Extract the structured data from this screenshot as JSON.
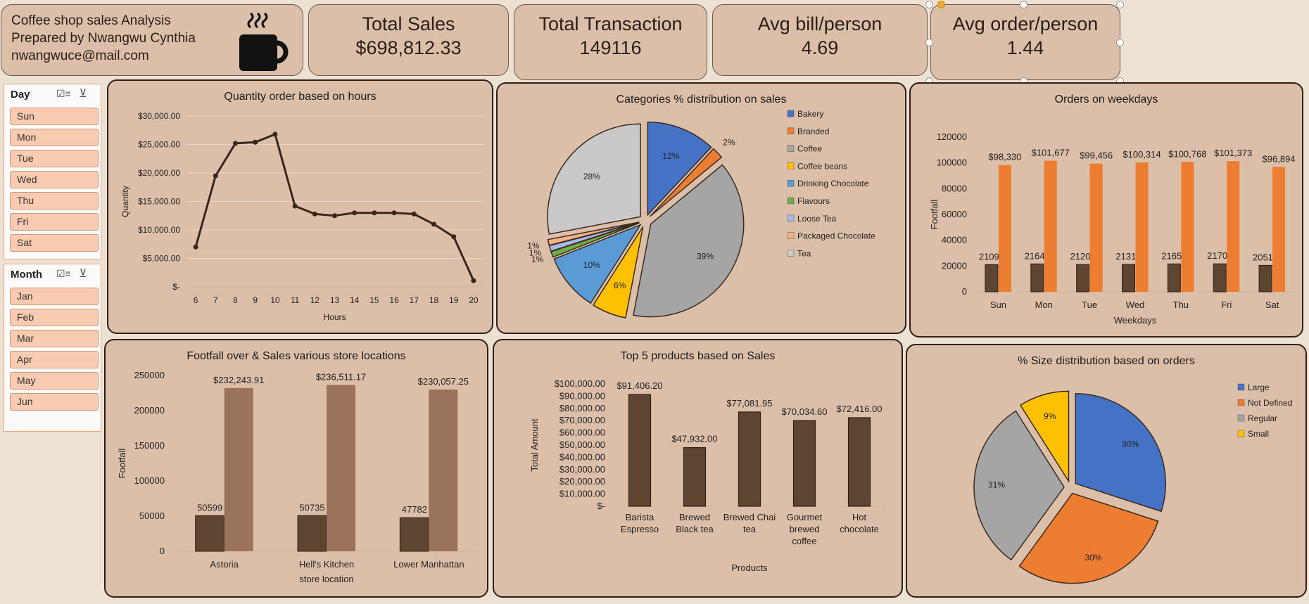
{
  "header": {
    "title_lines": [
      "Coffee shop sales Analysis",
      "Prepared by Nwangwu Cynthia",
      "nwangwuce@mail.com"
    ],
    "icon": "coffee-cup-icon",
    "kpis": [
      {
        "label": "Total Sales",
        "value": "$698,812.33"
      },
      {
        "label": "Total  Transaction",
        "value": "149116"
      },
      {
        "label": "Avg bill/person",
        "value": "4.69"
      },
      {
        "label": "Avg order/person",
        "value": "1.44"
      }
    ]
  },
  "slicers": {
    "day": {
      "title": "Day",
      "items": [
        "Sun",
        "Mon",
        "Tue",
        "Wed",
        "Thu",
        "Fri",
        "Sat"
      ]
    },
    "month": {
      "title": "Month",
      "items": [
        "Jan",
        "Feb",
        "Mar",
        "Apr",
        "May",
        "Jun"
      ]
    }
  },
  "colors": {
    "card_bg": "#dcbfa8",
    "page_bg": "#ece1d3",
    "dark_brown": "#5e4532",
    "light_brown": "#9a735a",
    "orange": "#ed7d31",
    "slicer_button": "#f9cbb0"
  },
  "chart_data": [
    {
      "id": "hours",
      "type": "line",
      "title": "Quantity order based on hours",
      "xlabel": "Hours",
      "ylabel": "Quantity",
      "x": [
        6,
        7,
        8,
        9,
        10,
        11,
        12,
        13,
        14,
        15,
        16,
        17,
        18,
        19,
        20
      ],
      "values": [
        7000,
        19500,
        25200,
        25400,
        26800,
        14200,
        12800,
        12500,
        13000,
        13000,
        13000,
        12800,
        11000,
        8800,
        1100
      ],
      "yticks": [
        "$-",
        "$5,000.00",
        "$10,000.00",
        "$15,000.00",
        "$20,000.00",
        "$25,000.00",
        "$30,000.00"
      ],
      "ylim": [
        0,
        30000
      ],
      "grid": true,
      "color": "#3b261a"
    },
    {
      "id": "categories",
      "type": "pie",
      "title": "Categories % distribution on sales",
      "categories": [
        "Bakery",
        "Branded",
        "Coffee",
        "Coffee beans",
        "Drinking Chocolate",
        "Flavours",
        "Loose Tea",
        "Packaged Chocolate",
        "Tea"
      ],
      "values": [
        12,
        2,
        39,
        6,
        10,
        1,
        1,
        1,
        28
      ],
      "labels": [
        "12%",
        "2%",
        "39%",
        "6%",
        "10%",
        "1%",
        "1%",
        "1%",
        "28%"
      ],
      "colors": [
        "#4472c4",
        "#ed7d31",
        "#a5a5a5",
        "#ffc000",
        "#5b9bd5",
        "#70ad47",
        "#a9b6e6",
        "#f4b183",
        "#c9c9c9"
      ],
      "legend": "right"
    },
    {
      "id": "weekdays",
      "type": "bar",
      "title": "Orders on weekdays",
      "xlabel": "Weekdays",
      "ylabel": "Footfall",
      "categories": [
        "Sun",
        "Mon",
        "Tue",
        "Wed",
        "Thu",
        "Fri",
        "Sat"
      ],
      "series": [
        {
          "values": [
            21096,
            21643,
            21202,
            21310,
            21654,
            21701,
            20510
          ],
          "labels": [
            "21096",
            "21643",
            "21202",
            "21310",
            "21654",
            "21701",
            "20510"
          ],
          "color": "#5e4532"
        },
        {
          "values": [
            98330,
            101677,
            99456,
            100314,
            100768,
            101373,
            96894
          ],
          "labels": [
            "$98,330",
            "$101,677",
            "$99,456",
            "$100,314",
            "$100,768",
            "$101,373",
            "$96,894"
          ],
          "color": "#ed7d31"
        }
      ],
      "yticks": [
        "0",
        "20000",
        "40000",
        "60000",
        "80000",
        "100000",
        "120000"
      ],
      "ylim": [
        0,
        120000
      ],
      "grid": false
    },
    {
      "id": "locations",
      "type": "bar",
      "title": "Footfall over & Sales various store locations",
      "xlabel": "store location",
      "ylabel": "Footfall",
      "categories": [
        "Astoria",
        "Hell's Kitchen",
        "Lower Manhattan"
      ],
      "series": [
        {
          "values": [
            50599,
            50735,
            47782
          ],
          "labels": [
            "50599",
            "50735",
            "47782"
          ],
          "color": "#5e4532"
        },
        {
          "values": [
            232243.91,
            236511.17,
            230057.25
          ],
          "labels": [
            "$232,243.91",
            "$236,511.17",
            "$230,057.25"
          ],
          "color": "#9a735a"
        }
      ],
      "yticks": [
        "0",
        "50000",
        "100000",
        "150000",
        "200000",
        "250000"
      ],
      "ylim": [
        0,
        250000
      ],
      "grid": false
    },
    {
      "id": "products",
      "type": "bar",
      "title": "Top 5 products based on Sales",
      "xlabel": "Products",
      "ylabel": "Total Amount",
      "categories": [
        "Barista Espresso",
        "Brewed Black tea",
        "Brewed Chai tea",
        "Gourmet brewed coffee",
        "Hot chocolate"
      ],
      "values": [
        91406.2,
        47932.0,
        77081.95,
        70034.6,
        72416.0
      ],
      "labels": [
        "$91,406.20",
        "$47,932.00",
        "$77,081.95",
        "$70,034.60",
        "$72,416.00"
      ],
      "yticks": [
        "$-",
        "$10,000.00",
        "$20,000.00",
        "$30,000.00",
        "$40,000.00",
        "$50,000.00",
        "$60,000.00",
        "$70,000.00",
        "$80,000.00",
        "$90,000.00",
        "$100,000.00"
      ],
      "ylim": [
        0,
        100000
      ],
      "color": "#5e4532",
      "grid": false
    },
    {
      "id": "sizes",
      "type": "pie",
      "title": "% Size distribution based on orders",
      "categories": [
        "Large",
        "Not Defined",
        "Regular",
        "Small"
      ],
      "values": [
        30,
        30,
        31,
        9
      ],
      "labels": [
        "30%",
        "30%",
        "31%",
        "9%"
      ],
      "colors": [
        "#4472c4",
        "#ed7d31",
        "#a5a5a5",
        "#ffc000"
      ],
      "legend": "right"
    }
  ]
}
